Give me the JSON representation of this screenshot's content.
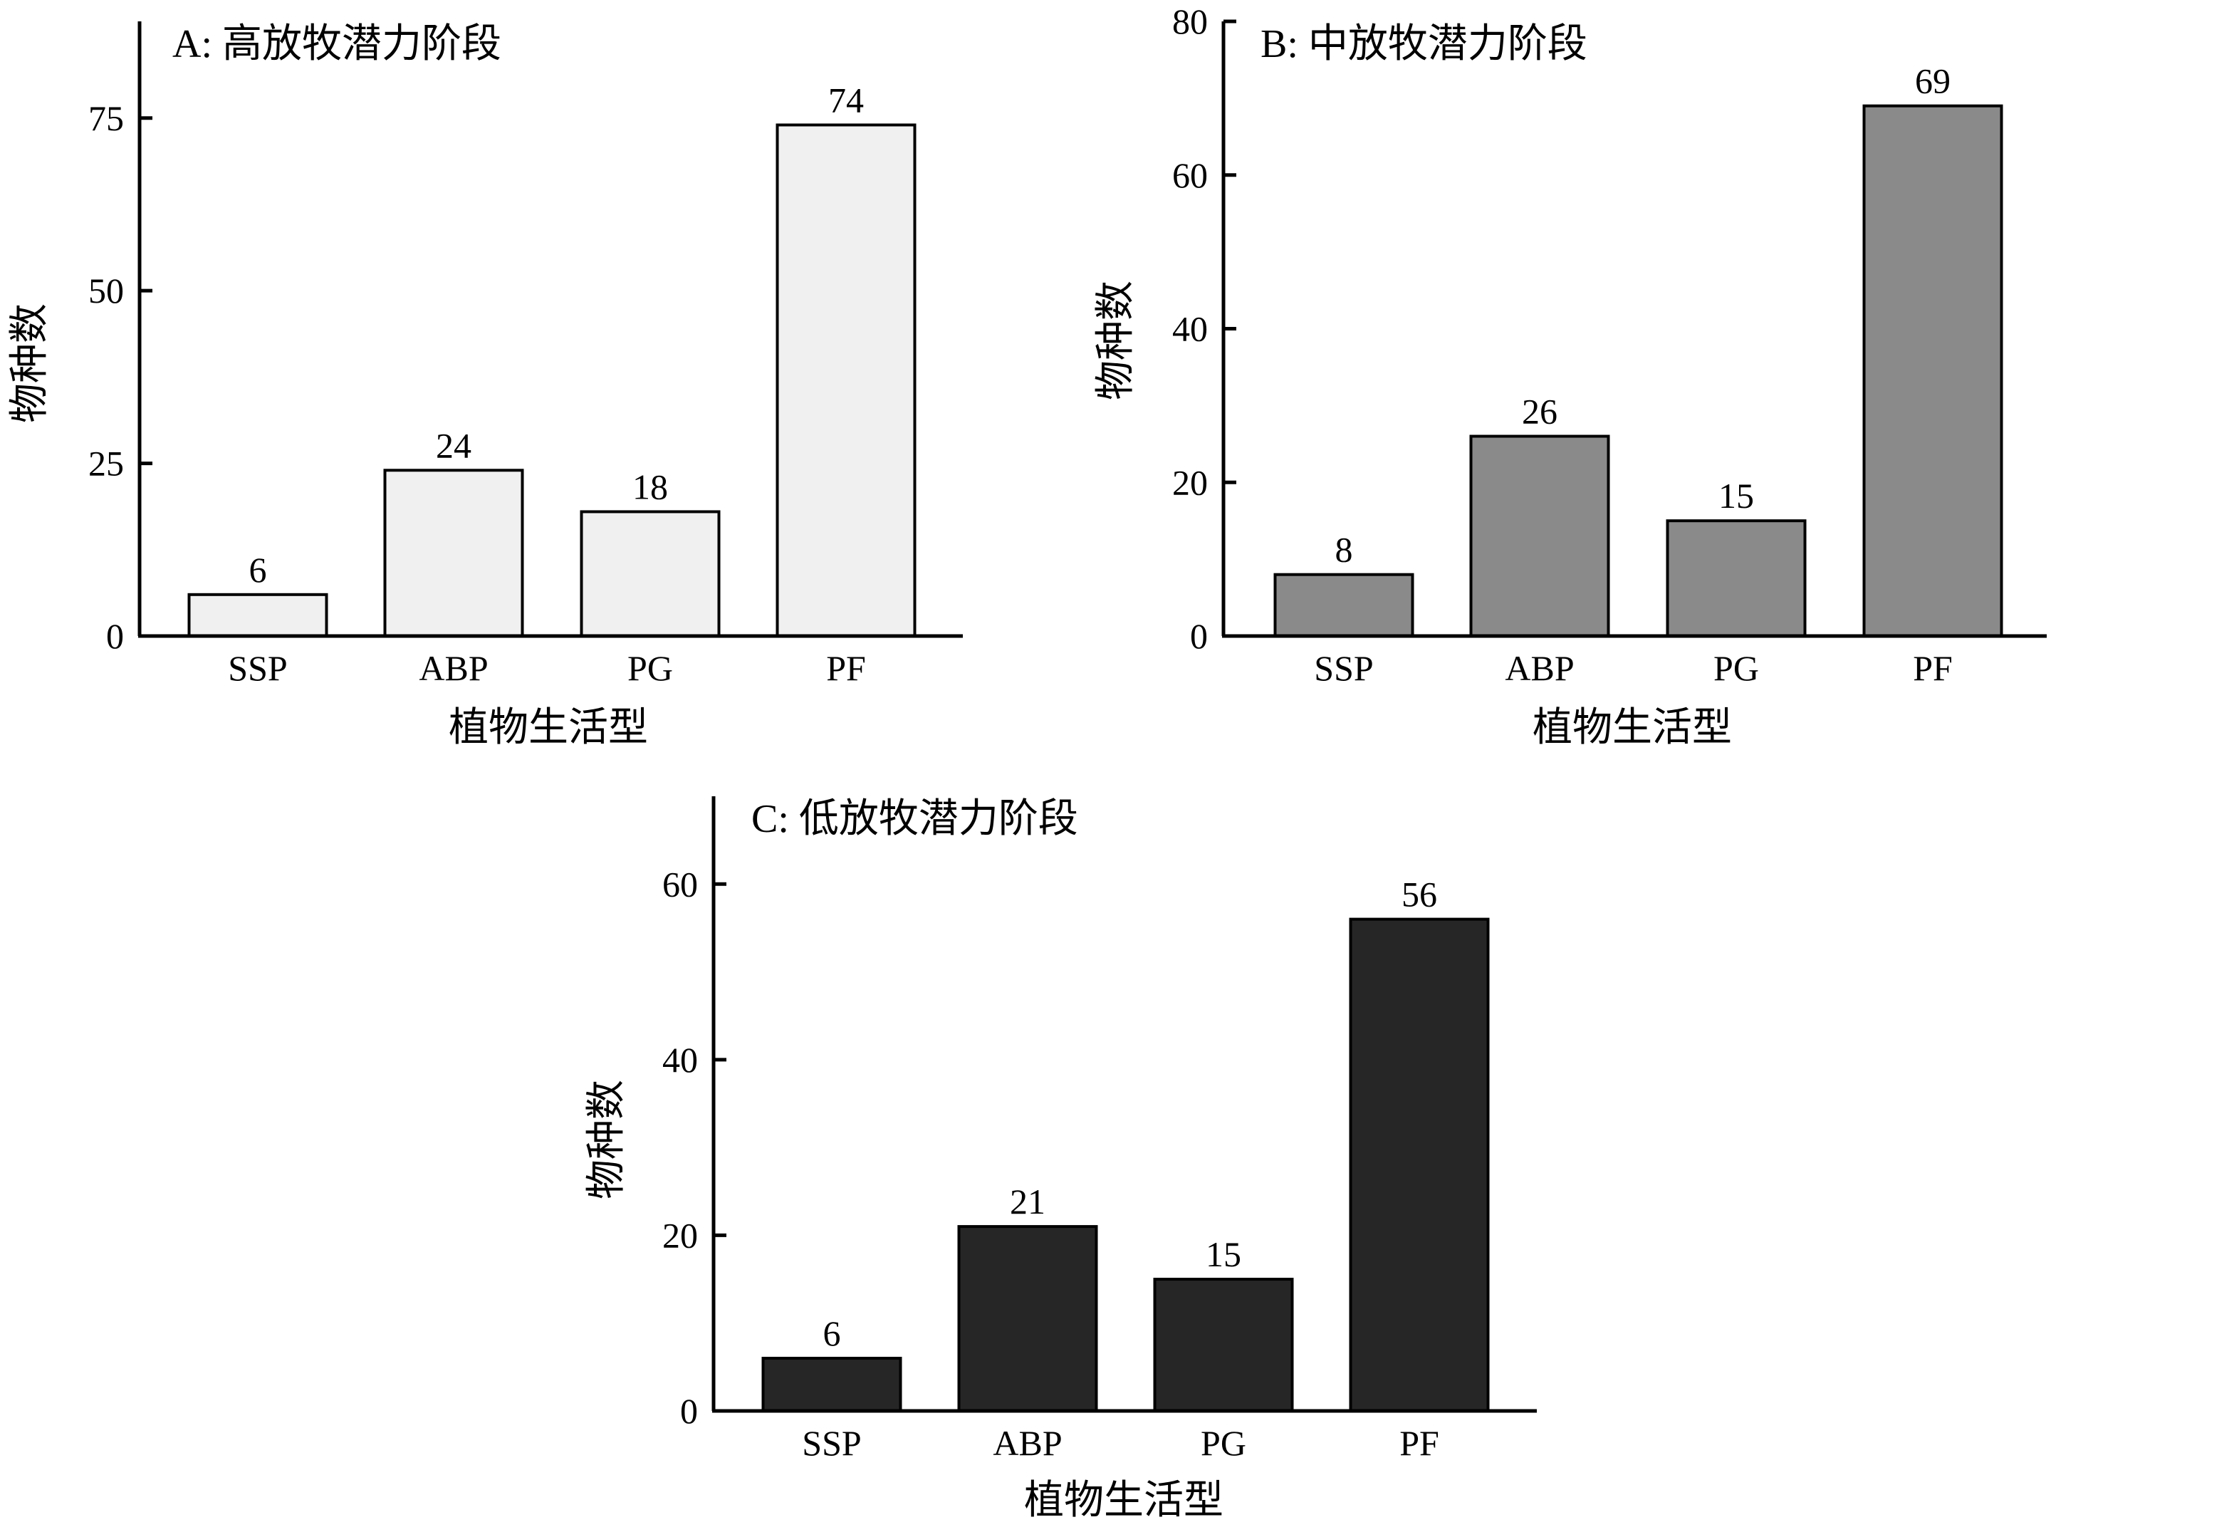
{
  "chart_data": [
    {
      "type": "bar",
      "panel": "A",
      "title": "A: 高放牧潜力阶段",
      "xlabel": "植物生活型",
      "ylabel": "物种数",
      "categories": [
        "SSP",
        "ABP",
        "PG",
        "PF"
      ],
      "values": [
        6,
        24,
        18,
        74
      ],
      "ylim": [
        0,
        89
      ],
      "yticks": [
        0,
        25,
        50,
        75
      ],
      "bar_color": "#f0f0f0",
      "grid": false,
      "legend": "none"
    },
    {
      "type": "bar",
      "panel": "B",
      "title": "B: 中放牧潜力阶段",
      "xlabel": "植物生活型",
      "ylabel": "物种数",
      "categories": [
        "SSP",
        "ABP",
        "PG",
        "PF"
      ],
      "values": [
        8,
        26,
        15,
        69
      ],
      "ylim": [
        0,
        80
      ],
      "yticks": [
        0,
        20,
        40,
        60,
        80
      ],
      "bar_color": "#8a8a8a",
      "grid": false,
      "legend": "none"
    },
    {
      "type": "bar",
      "panel": "C",
      "title": "C: 低放牧潜力阶段",
      "xlabel": "植物生活型",
      "ylabel": "物种数",
      "categories": [
        "SSP",
        "ABP",
        "PG",
        "PF"
      ],
      "values": [
        6,
        21,
        15,
        56
      ],
      "ylim": [
        0,
        70
      ],
      "yticks": [
        0,
        20,
        40,
        60
      ],
      "bar_color": "#262626",
      "grid": false,
      "legend": "none"
    }
  ]
}
